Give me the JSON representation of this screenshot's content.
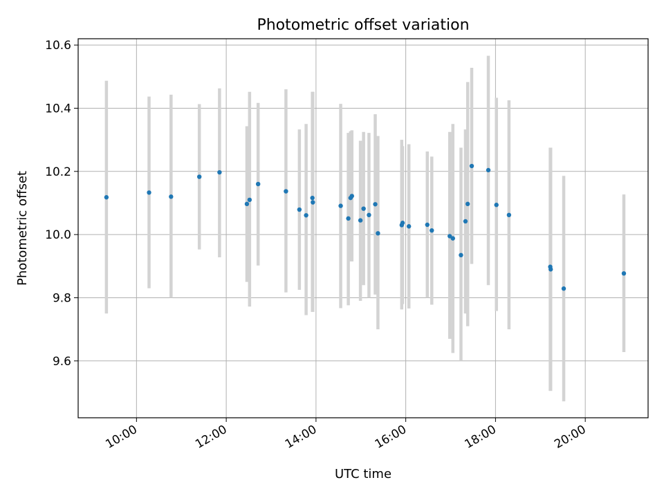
{
  "chart_data": {
    "type": "scatter",
    "title": "Photometric offset variation",
    "xlabel": "UTC time",
    "ylabel": "Photometric offset",
    "xlim_hours": [
      8.7,
      21.4
    ],
    "ylim": [
      9.42,
      10.62
    ],
    "grid": true,
    "xticks": [
      {
        "value": 10,
        "label": "10:00"
      },
      {
        "value": 12,
        "label": "12:00"
      },
      {
        "value": 14,
        "label": "14:00"
      },
      {
        "value": 16,
        "label": "16:00"
      },
      {
        "value": 18,
        "label": "18:00"
      },
      {
        "value": 20,
        "label": "20:00"
      }
    ],
    "yticks": [
      {
        "value": 9.6,
        "label": "9.6"
      },
      {
        "value": 9.8,
        "label": "9.8"
      },
      {
        "value": 10.0,
        "label": "10.0"
      },
      {
        "value": 10.2,
        "label": "10.2"
      },
      {
        "value": 10.4,
        "label": "10.4"
      },
      {
        "value": 10.6,
        "label": "10.6"
      }
    ],
    "point_color": "#1f77b4",
    "errorbar_color": "#d3d3d3",
    "points": [
      {
        "t": 9.33,
        "y": 10.118,
        "lo": 9.75,
        "hi": 10.487
      },
      {
        "t": 10.28,
        "y": 10.133,
        "lo": 9.83,
        "hi": 10.437
      },
      {
        "t": 10.77,
        "y": 10.12,
        "lo": 9.8,
        "hi": 10.443
      },
      {
        "t": 11.4,
        "y": 10.183,
        "lo": 9.953,
        "hi": 10.413
      },
      {
        "t": 11.85,
        "y": 10.197,
        "lo": 9.928,
        "hi": 10.463
      },
      {
        "t": 12.46,
        "y": 10.097,
        "lo": 9.85,
        "hi": 10.343
      },
      {
        "t": 12.52,
        "y": 10.11,
        "lo": 9.772,
        "hi": 10.452
      },
      {
        "t": 12.71,
        "y": 10.16,
        "lo": 9.902,
        "hi": 10.417
      },
      {
        "t": 13.33,
        "y": 10.137,
        "lo": 9.817,
        "hi": 10.46
      },
      {
        "t": 13.63,
        "y": 10.079,
        "lo": 9.825,
        "hi": 10.333
      },
      {
        "t": 13.78,
        "y": 10.061,
        "lo": 9.745,
        "hi": 10.35
      },
      {
        "t": 13.92,
        "y": 10.116,
        "lo": 9.755,
        "hi": 10.452
      },
      {
        "t": 13.93,
        "y": 10.102,
        "lo": 9.755,
        "hi": 10.452
      },
      {
        "t": 14.55,
        "y": 10.091,
        "lo": 9.767,
        "hi": 10.414
      },
      {
        "t": 14.72,
        "y": 10.051,
        "lo": 9.776,
        "hi": 10.322
      },
      {
        "t": 14.77,
        "y": 10.116,
        "lo": 9.915,
        "hi": 10.327
      },
      {
        "t": 14.8,
        "y": 10.122,
        "lo": 9.915,
        "hi": 10.33
      },
      {
        "t": 14.99,
        "y": 10.045,
        "lo": 9.79,
        "hi": 10.297
      },
      {
        "t": 15.06,
        "y": 10.082,
        "lo": 9.84,
        "hi": 10.325
      },
      {
        "t": 15.18,
        "y": 10.062,
        "lo": 9.8,
        "hi": 10.322
      },
      {
        "t": 15.32,
        "y": 10.096,
        "lo": 9.81,
        "hi": 10.381
      },
      {
        "t": 15.38,
        "y": 10.004,
        "lo": 9.7,
        "hi": 10.312
      },
      {
        "t": 15.91,
        "y": 10.03,
        "lo": 9.763,
        "hi": 10.3
      },
      {
        "t": 15.93,
        "y": 10.037,
        "lo": 9.78,
        "hi": 10.28
      },
      {
        "t": 16.07,
        "y": 10.026,
        "lo": 9.766,
        "hi": 10.286
      },
      {
        "t": 16.48,
        "y": 10.031,
        "lo": 9.8,
        "hi": 10.263
      },
      {
        "t": 16.58,
        "y": 10.013,
        "lo": 9.778,
        "hi": 10.247
      },
      {
        "t": 16.98,
        "y": 9.995,
        "lo": 9.67,
        "hi": 10.325
      },
      {
        "t": 17.05,
        "y": 9.988,
        "lo": 9.625,
        "hi": 10.35
      },
      {
        "t": 17.23,
        "y": 9.935,
        "lo": 9.6,
        "hi": 10.275
      },
      {
        "t": 17.33,
        "y": 10.042,
        "lo": 9.75,
        "hi": 10.333
      },
      {
        "t": 17.38,
        "y": 10.097,
        "lo": 9.71,
        "hi": 10.483
      },
      {
        "t": 17.47,
        "y": 10.217,
        "lo": 9.907,
        "hi": 10.528
      },
      {
        "t": 17.84,
        "y": 10.204,
        "lo": 9.84,
        "hi": 10.566
      },
      {
        "t": 18.02,
        "y": 10.094,
        "lo": 9.758,
        "hi": 10.433
      },
      {
        "t": 18.3,
        "y": 10.062,
        "lo": 9.7,
        "hi": 10.425
      },
      {
        "t": 19.22,
        "y": 9.898,
        "lo": 9.505,
        "hi": 10.275
      },
      {
        "t": 19.23,
        "y": 9.89,
        "lo": 9.505,
        "hi": 10.275
      },
      {
        "t": 19.52,
        "y": 9.829,
        "lo": 9.472,
        "hi": 10.186
      },
      {
        "t": 20.86,
        "y": 9.877,
        "lo": 9.628,
        "hi": 10.127
      }
    ]
  }
}
